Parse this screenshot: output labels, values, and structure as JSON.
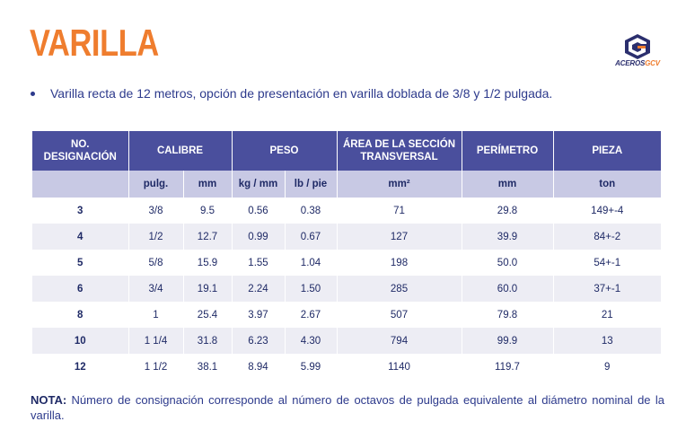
{
  "title": "VARILLA",
  "logo": {
    "text_main": "ACEROS",
    "text_accent": "GCV",
    "icon": "gcv-logo-icon"
  },
  "bullet": "Varilla recta de 12 metros, opción de presentación en varilla doblada de 3/8 y 1/2 pulgada.",
  "table": {
    "headers": [
      "NO.\nDESIGNACIÓN",
      "CALIBRE",
      "PESO",
      "ÁREA DE LA SECCIÓN\nTRANSVERSAL",
      "PERÍMETRO",
      "PIEZA"
    ],
    "subheaders": [
      "",
      "pulg.",
      "mm",
      "kg / mm",
      "lb / pie",
      "mm²",
      "mm",
      "ton"
    ],
    "rows": [
      [
        "3",
        "3/8",
        "9.5",
        "0.56",
        "0.38",
        "71",
        "29.8",
        "149+-4"
      ],
      [
        "4",
        "1/2",
        "12.7",
        "0.99",
        "0.67",
        "127",
        "39.9",
        "84+-2"
      ],
      [
        "5",
        "5/8",
        "15.9",
        "1.55",
        "1.04",
        "198",
        "50.0",
        "54+-1"
      ],
      [
        "6",
        "3/4",
        "19.1",
        "2.24",
        "1.50",
        "285",
        "60.0",
        "37+-1"
      ],
      [
        "8",
        "1",
        "25.4",
        "3.97",
        "2.67",
        "507",
        "79.8",
        "21"
      ],
      [
        "10",
        "1 1/4",
        "31.8",
        "6.23",
        "4.30",
        "794",
        "99.9",
        "13"
      ],
      [
        "12",
        "1 1/2",
        "38.1",
        "8.94",
        "5.99",
        "1140",
        "119.7",
        "9"
      ]
    ]
  },
  "note": {
    "label": "NOTA:",
    "text": " Número de consignación corresponde al número de octavos de pulgada equivalente al diámetro nominal de la varilla."
  },
  "colors": {
    "title": "#ef7d2e",
    "header_bg": "#4a4f9d",
    "subheader_bg": "#c8c9e4",
    "stripe": "#ededf4",
    "text": "#1f2a66"
  }
}
